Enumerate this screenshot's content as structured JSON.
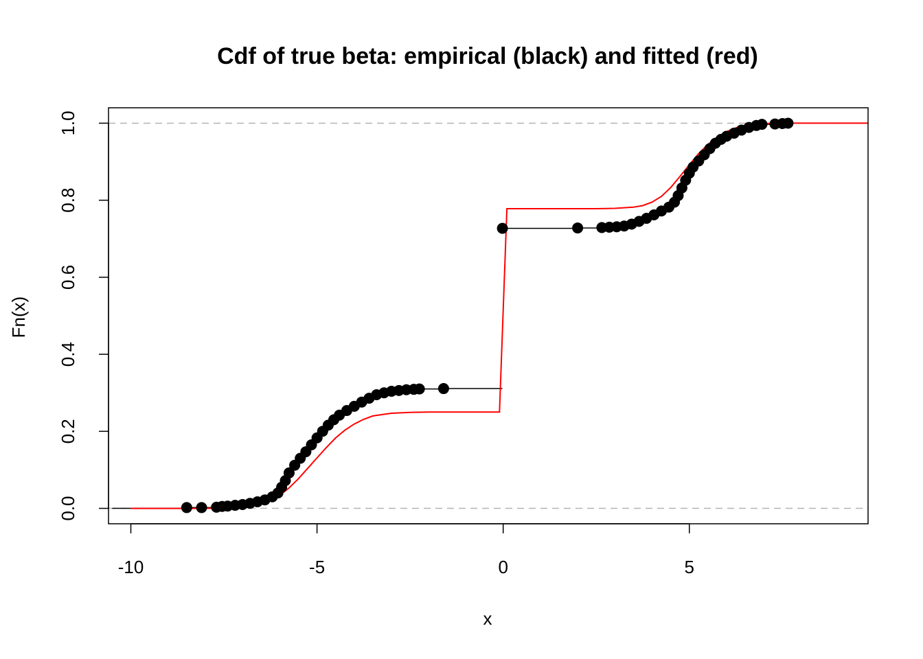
{
  "chart_data": {
    "type": "line",
    "title": "Cdf of true beta: empirical (black) and fitted (red)",
    "xlabel": "x",
    "ylabel": "Fn(x)",
    "xlim": [
      -10.6,
      9.8
    ],
    "ylim": [
      -0.04,
      1.04
    ],
    "x_ticks": [
      -10,
      -5,
      0,
      5
    ],
    "x_tick_labels": [
      "-10",
      "-5",
      "0",
      "5"
    ],
    "y_ticks": [
      0.0,
      0.2,
      0.4,
      0.6,
      0.8,
      1.0
    ],
    "y_tick_labels": [
      "0.0",
      "0.2",
      "0.4",
      "0.6",
      "0.8",
      "1.0"
    ],
    "reference_lines": [
      0,
      1
    ],
    "grid": false,
    "legend": "none",
    "series": [
      {
        "kind": "empirical_step",
        "color": "#000000",
        "points": [
          [
            -8.5,
            0.002
          ],
          [
            -8.1,
            0.002
          ],
          [
            -7.7,
            0.003
          ],
          [
            -7.55,
            0.005
          ],
          [
            -7.4,
            0.006
          ],
          [
            -7.2,
            0.008
          ],
          [
            -7.0,
            0.01
          ],
          [
            -6.8,
            0.013
          ],
          [
            -6.6,
            0.017
          ],
          [
            -6.4,
            0.022
          ],
          [
            -6.2,
            0.03
          ],
          [
            -6.05,
            0.04
          ],
          [
            -5.95,
            0.055
          ],
          [
            -5.85,
            0.072
          ],
          [
            -5.75,
            0.092
          ],
          [
            -5.6,
            0.112
          ],
          [
            -5.45,
            0.13
          ],
          [
            -5.3,
            0.147
          ],
          [
            -5.15,
            0.165
          ],
          [
            -5.0,
            0.183
          ],
          [
            -4.85,
            0.2
          ],
          [
            -4.7,
            0.216
          ],
          [
            -4.55,
            0.23
          ],
          [
            -4.4,
            0.242
          ],
          [
            -4.2,
            0.254
          ],
          [
            -4.0,
            0.265
          ],
          [
            -3.8,
            0.276
          ],
          [
            -3.6,
            0.286
          ],
          [
            -3.4,
            0.295
          ],
          [
            -3.2,
            0.3
          ],
          [
            -3.0,
            0.304
          ],
          [
            -2.8,
            0.306
          ],
          [
            -2.6,
            0.308
          ],
          [
            -2.4,
            0.309
          ],
          [
            -2.25,
            0.31
          ],
          [
            -1.6,
            0.311
          ],
          [
            -0.02,
            0.727
          ],
          [
            2.0,
            0.728
          ],
          [
            2.65,
            0.729
          ],
          [
            2.85,
            0.73
          ],
          [
            3.05,
            0.731
          ],
          [
            3.25,
            0.733
          ],
          [
            3.45,
            0.738
          ],
          [
            3.65,
            0.745
          ],
          [
            3.85,
            0.753
          ],
          [
            4.05,
            0.762
          ],
          [
            4.25,
            0.772
          ],
          [
            4.45,
            0.782
          ],
          [
            4.6,
            0.795
          ],
          [
            4.7,
            0.812
          ],
          [
            4.8,
            0.832
          ],
          [
            4.9,
            0.852
          ],
          [
            5.0,
            0.87
          ],
          [
            5.1,
            0.886
          ],
          [
            5.25,
            0.902
          ],
          [
            5.4,
            0.918
          ],
          [
            5.55,
            0.934
          ],
          [
            5.7,
            0.948
          ],
          [
            5.85,
            0.958
          ],
          [
            6.0,
            0.966
          ],
          [
            6.2,
            0.974
          ],
          [
            6.4,
            0.982
          ],
          [
            6.6,
            0.989
          ],
          [
            6.8,
            0.994
          ],
          [
            6.95,
            0.997
          ],
          [
            7.3,
            0.998
          ],
          [
            7.5,
            0.999
          ],
          [
            7.65,
            1.0
          ]
        ]
      },
      {
        "kind": "fitted_cdf",
        "color": "#ff0000",
        "points": [
          [
            -10.0,
            0.0
          ],
          [
            -8.0,
            0.0
          ],
          [
            -7.5,
            0.001
          ],
          [
            -7.0,
            0.004
          ],
          [
            -6.5,
            0.012
          ],
          [
            -6.25,
            0.021
          ],
          [
            -6.0,
            0.034
          ],
          [
            -5.75,
            0.053
          ],
          [
            -5.5,
            0.077
          ],
          [
            -5.25,
            0.104
          ],
          [
            -5.0,
            0.131
          ],
          [
            -4.75,
            0.158
          ],
          [
            -4.5,
            0.183
          ],
          [
            -4.25,
            0.203
          ],
          [
            -4.0,
            0.219
          ],
          [
            -3.75,
            0.231
          ],
          [
            -3.5,
            0.24
          ],
          [
            -3.0,
            0.247
          ],
          [
            -2.5,
            0.249
          ],
          [
            -2.0,
            0.25
          ],
          [
            -0.1,
            0.25
          ],
          [
            0.0,
            0.514
          ],
          [
            0.1,
            0.778
          ],
          [
            2.0,
            0.778
          ],
          [
            2.5,
            0.778
          ],
          [
            3.0,
            0.779
          ],
          [
            3.5,
            0.782
          ],
          [
            3.75,
            0.786
          ],
          [
            4.0,
            0.795
          ],
          [
            4.25,
            0.81
          ],
          [
            4.5,
            0.833
          ],
          [
            4.75,
            0.862
          ],
          [
            5.0,
            0.892
          ],
          [
            5.25,
            0.921
          ],
          [
            5.5,
            0.945
          ],
          [
            5.75,
            0.964
          ],
          [
            6.0,
            0.978
          ],
          [
            6.25,
            0.988
          ],
          [
            6.5,
            0.994
          ],
          [
            7.0,
            0.999
          ],
          [
            7.5,
            1.0
          ],
          [
            9.8,
            1.0
          ]
        ]
      }
    ]
  }
}
